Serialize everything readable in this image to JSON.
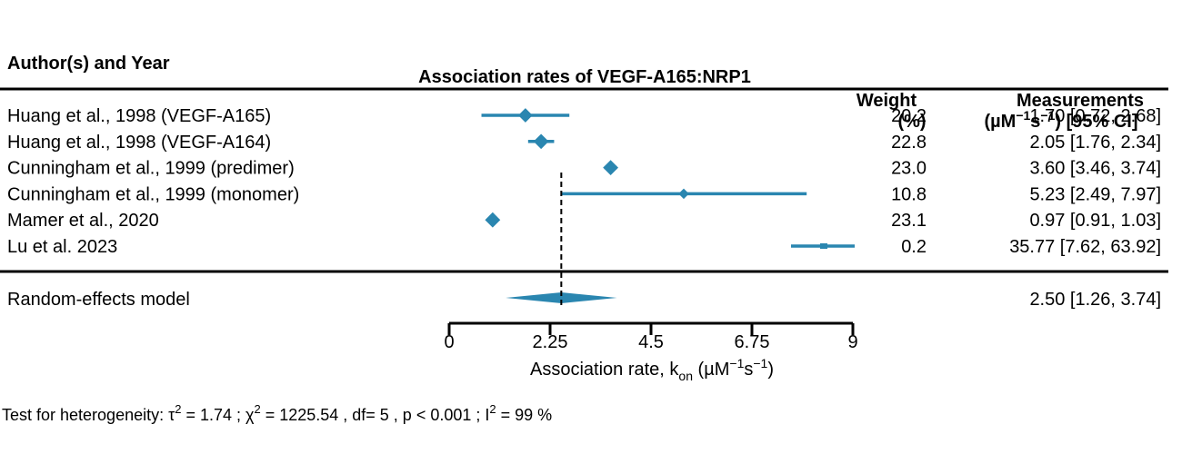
{
  "header": {
    "col_study": "Author(s) and Year",
    "title": "Association rates of VEGF-A165:NRP1",
    "col_weight_line1": "Weight",
    "col_weight_line2": "(%)",
    "col_meas_line1": "Measurements",
    "col_meas_line2_pre": "(µM",
    "col_meas_line2_sup1": "−1",
    "col_meas_line2_mid": "s",
    "col_meas_line2_sup2": "−1",
    "col_meas_line2_post": ") [95% CI]"
  },
  "chart_data": {
    "type": "forest",
    "xlim": [
      0,
      9
    ],
    "xticks": [
      0,
      2.25,
      4.5,
      6.75,
      9
    ],
    "xtick_labels": [
      "0",
      "2.25",
      "4.5",
      "6.75",
      "9"
    ],
    "xlabel": {
      "pre": "Association rate, k",
      "sub": "on",
      "mid1": " (µM",
      "sup1": "−1",
      "mid2": "s",
      "sup2": "−1",
      "post": ")"
    },
    "reference_line": 2.5,
    "color": "#2a86b0",
    "studies": [
      {
        "label": "Huang et al., 1998 (VEGF-A165)",
        "estimate": 1.7,
        "lower": 0.72,
        "upper": 2.68,
        "weight": 20.2,
        "weight_label": "20.2",
        "ci_label": "1.70 [0.72,  2.68]"
      },
      {
        "label": "Huang et al., 1998 (VEGF-A164)",
        "estimate": 2.05,
        "lower": 1.76,
        "upper": 2.34,
        "weight": 22.8,
        "weight_label": "22.8",
        "ci_label": "2.05 [1.76,  2.34]"
      },
      {
        "label": "Cunningham et al., 1999 (predimer)",
        "estimate": 3.6,
        "lower": 3.46,
        "upper": 3.74,
        "weight": 23.0,
        "weight_label": "23.0",
        "ci_label": "3.60 [3.46,  3.74]"
      },
      {
        "label": "Cunningham et al., 1999 (monomer)",
        "estimate": 5.23,
        "lower": 2.49,
        "upper": 7.97,
        "weight": 10.8,
        "weight_label": "10.8",
        "ci_label": "5.23 [2.49,  7.97]"
      },
      {
        "label": "Mamer et al., 2020",
        "estimate": 0.97,
        "lower": 0.91,
        "upper": 1.03,
        "weight": 23.1,
        "weight_label": "23.1",
        "ci_label": "0.97 [0.91,  1.03]"
      },
      {
        "label": "Lu et al. 2023",
        "estimate": 35.77,
        "lower": 7.62,
        "upper": 63.92,
        "weight": 0.2,
        "weight_label": "0.2",
        "ci_label": "35.77 [7.62, 63.92]"
      }
    ],
    "summary": {
      "label": "Random-effects model",
      "estimate": 2.5,
      "lower": 1.26,
      "upper": 3.74,
      "ci_label": "2.50 [1.26,  3.74]"
    }
  },
  "footer": {
    "het_prefix": "Test for heterogeneity:  τ",
    "het_sup_tau": "2",
    "het_tau_val": " = 1.74 ;  χ",
    "het_sup_chi": "2",
    "het_chi_val": " = 1225.54 , df= 5 ,  p < 0.001 ;  I",
    "het_sup_i": "2",
    "het_i_val": " = 99 %"
  }
}
